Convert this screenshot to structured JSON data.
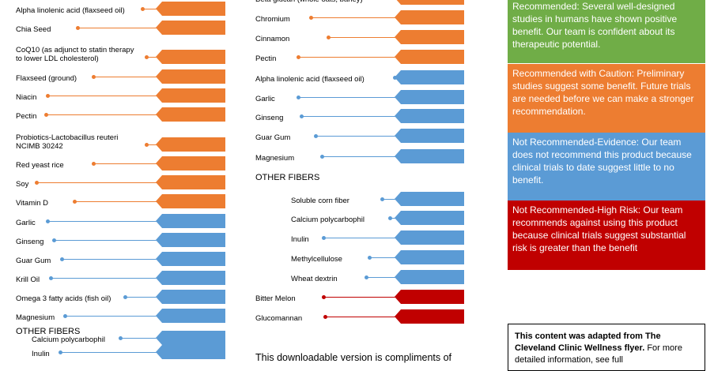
{
  "colors": {
    "recommended": "#ed7d31",
    "caution": "#ed7d31",
    "not_evidence": "#5b9bd5",
    "high_risk": "#c00000",
    "green": "#70ad47"
  },
  "left_column": {
    "items": [
      {
        "label": "Alpha linolenic acid (flaxseed oil)",
        "category": "orange"
      },
      {
        "label": "Chia Seed",
        "category": "orange"
      },
      {
        "label": "CoQ10 (as adjunct to statin therapy",
        "label2": "to lower LDL cholesterol)",
        "category": "orange"
      },
      {
        "label": "Flaxseed (ground)",
        "category": "orange"
      },
      {
        "label": "Niacin",
        "category": "orange"
      },
      {
        "label": "Pectin",
        "category": "orange"
      },
      {
        "label": "Probiotics-Lactobacillus reuteri",
        "label2": "NCIMB 30242",
        "category": "orange"
      },
      {
        "label": "Red yeast rice",
        "category": "orange"
      },
      {
        "label": "Soy",
        "category": "orange"
      },
      {
        "label": "Vitamin D",
        "category": "orange"
      },
      {
        "label": "Garlic",
        "category": "blue"
      },
      {
        "label": "Ginseng",
        "category": "blue"
      },
      {
        "label": "Guar Gum",
        "category": "blue"
      },
      {
        "label": "Krill Oil",
        "category": "blue"
      },
      {
        "label": "Omega 3 fatty acids (fish oil)",
        "category": "blue"
      },
      {
        "label": "Magnesium",
        "category": "blue"
      }
    ],
    "other_fibers_heading": "OTHER FIBERS",
    "fibers": [
      {
        "label": "Calcium polycarbophil",
        "category": "blue"
      },
      {
        "label": "Inulin",
        "category": "blue"
      }
    ]
  },
  "middle_column": {
    "items": [
      {
        "label": "Beta glucan (whole oats, barley)",
        "category": "orange"
      },
      {
        "label": "Chromium",
        "category": "orange"
      },
      {
        "label": "Cinnamon",
        "category": "orange"
      },
      {
        "label": "Pectin",
        "category": "orange"
      },
      {
        "label": "Alpha linolenic acid (flaxseed oil)",
        "category": "blue"
      },
      {
        "label": "Garlic",
        "category": "blue"
      },
      {
        "label": "Ginseng",
        "category": "blue"
      },
      {
        "label": "Guar Gum",
        "category": "blue"
      },
      {
        "label": "Magnesium",
        "category": "blue"
      }
    ],
    "other_fibers_heading": "OTHER FIBERS",
    "fibers": [
      {
        "label": "Soluble corn fiber",
        "category": "blue"
      },
      {
        "label": "Calcium polycarbophil",
        "category": "blue"
      },
      {
        "label": "Inulin",
        "category": "blue"
      },
      {
        "label": "Methylcellulose",
        "category": "blue"
      },
      {
        "label": "Wheat dextrin",
        "category": "blue"
      }
    ],
    "risk_items": [
      {
        "label": "Bitter Melon",
        "category": "red"
      },
      {
        "label": "Glucomannan",
        "category": "red"
      }
    ],
    "download_note": "This downloadable version is compliments of"
  },
  "legend": {
    "recommended": "Recommended: Several well-designed studies in humans have shown positive benefit. Our team is confident about its therapeutic potential.",
    "caution": "Recommended with Caution: Preliminary studies suggest some benefit. Future trials are needed before we can make a stronger recommendation.",
    "not_evidence": "Not Recommended-Evidence: Our team does not recommend this product because clinical trials to date suggest little to no benefit.",
    "high_risk": "Not Recommended-High Risk: Our team recommends against using this product because clinical trials suggest substantial risk is greater than the benefit"
  },
  "credit": {
    "bold": "This content was adapted from The Cleveland Clinic Wellness flyer.",
    "rest": " For more detailed information, see full"
  }
}
